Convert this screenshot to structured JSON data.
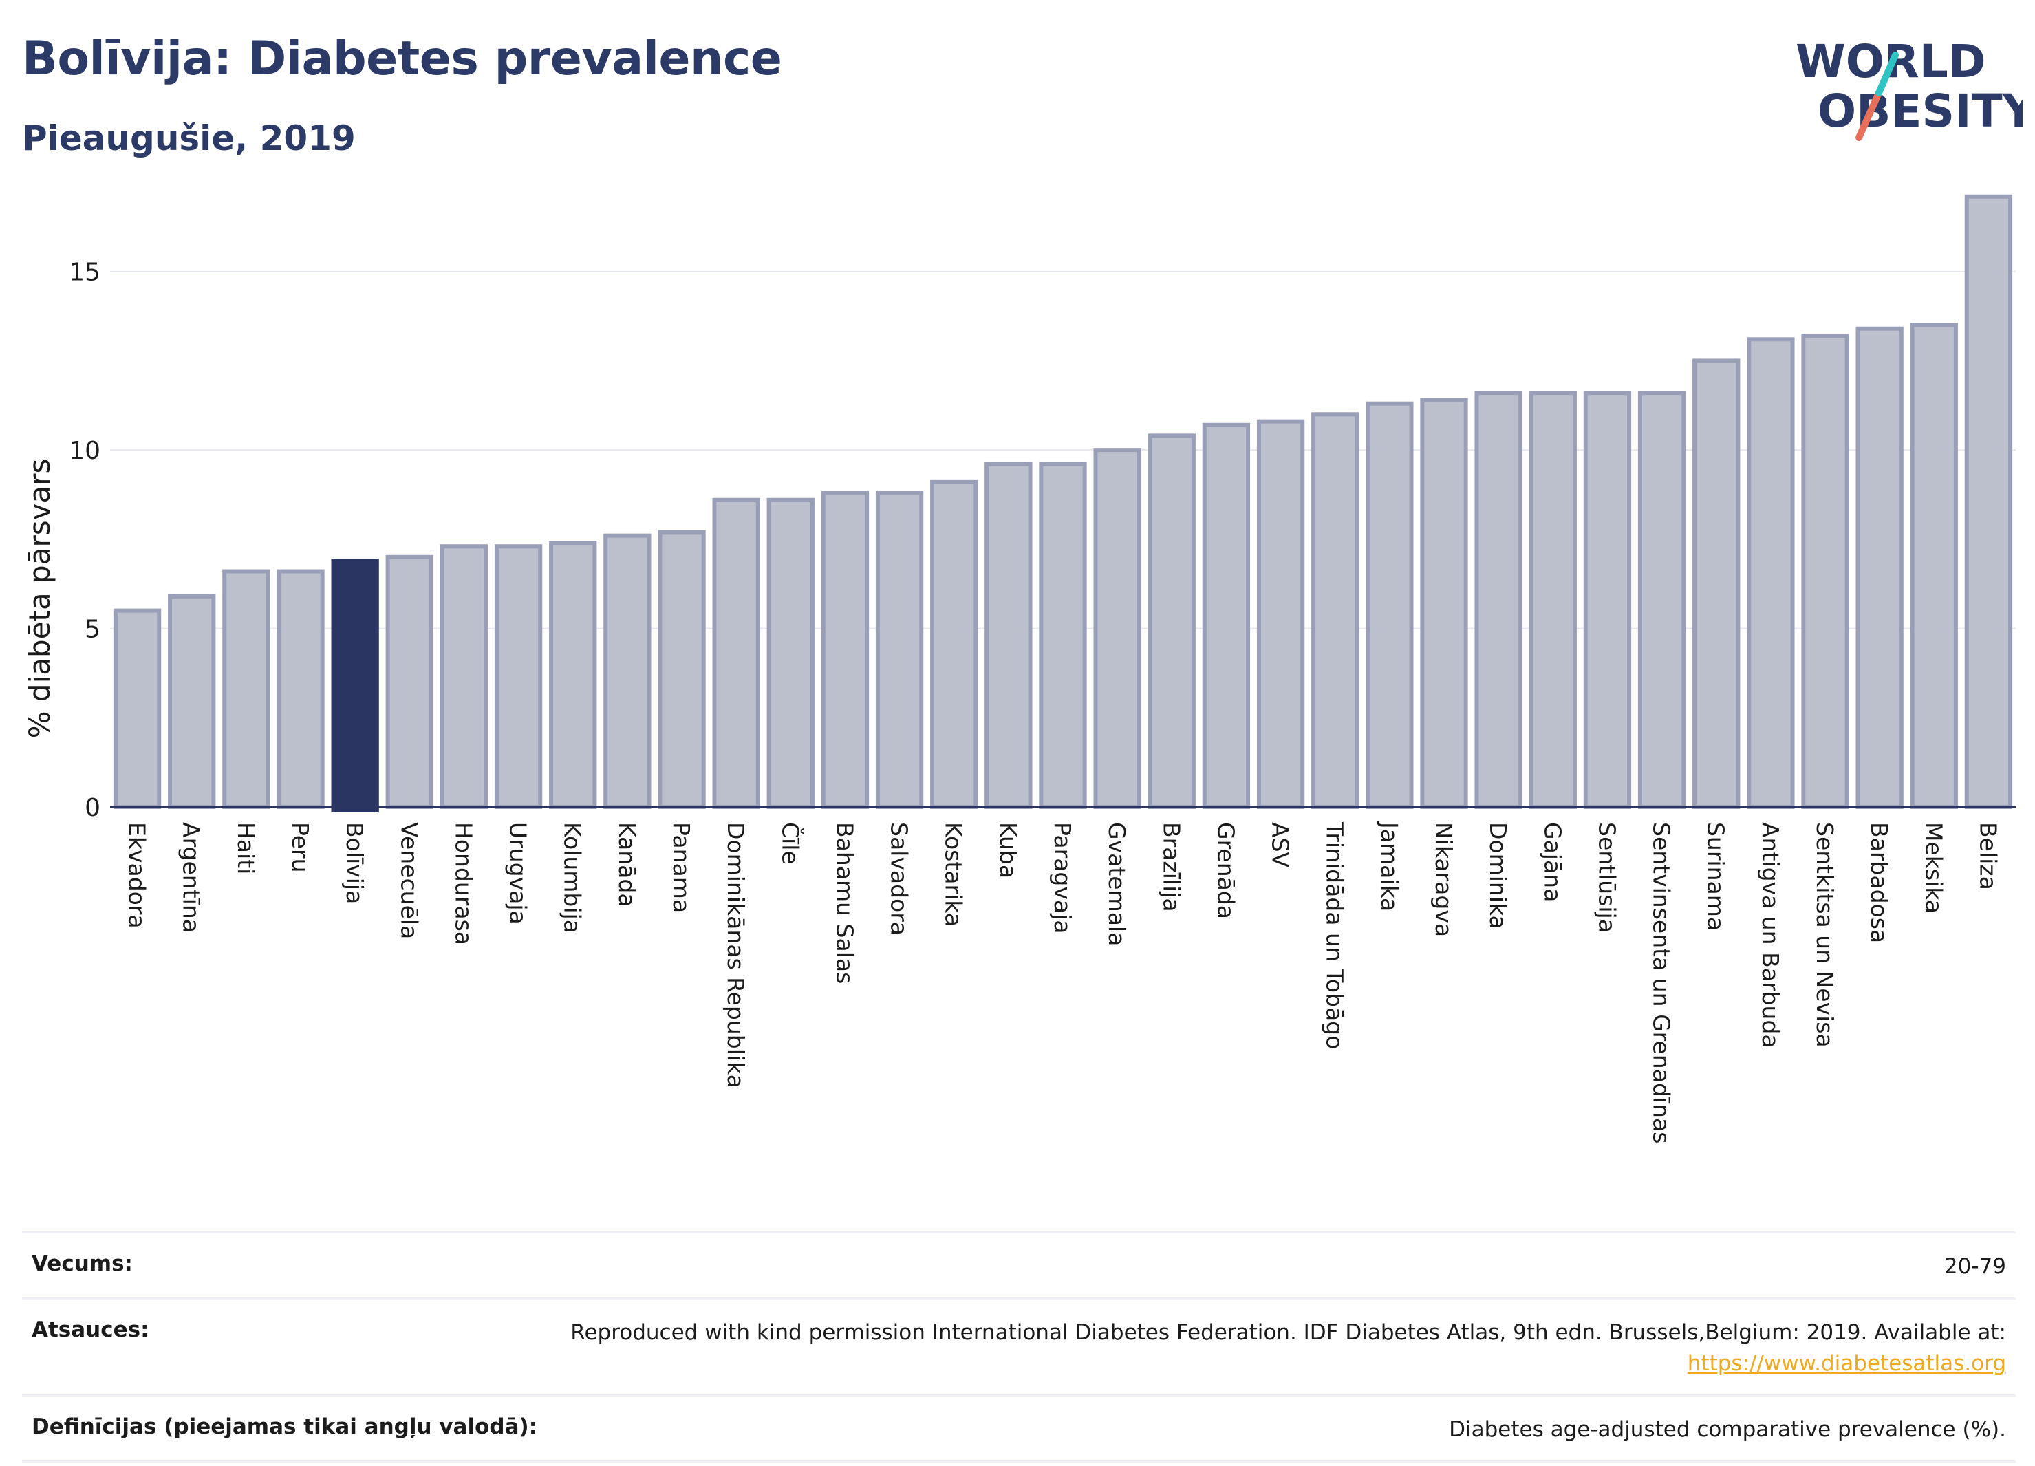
{
  "header": {
    "title": "Bolīvija: Diabetes prevalence",
    "subtitle": "Pieaugušie, 2019"
  },
  "logo": {
    "line1": "WORLD",
    "line2": "OBESITY",
    "colors": {
      "text": "#2b3a67",
      "slash_top": "#2ec4c4",
      "slash_bottom": "#e8705a"
    }
  },
  "chart_data": {
    "type": "bar",
    "ylabel": "% diabēta pārsvars",
    "ylim": [
      0,
      17.5
    ],
    "yticks": [
      0,
      5,
      10,
      15
    ],
    "grid": true,
    "highlight": "Bolīvija",
    "colors": {
      "bar": "#bcc0cd",
      "bar_border": "#9a9fb8",
      "highlight": "#2b3562"
    },
    "categories": [
      "Ekvadora",
      "Argentīna",
      "Haiti",
      "Peru",
      "Bolīvija",
      "Venecuēla",
      "Hondurasa",
      "Urugvaja",
      "Kolumbija",
      "Kanāda",
      "Panama",
      "Dominikānas Republika",
      "Čīle",
      "Bahamu Salas",
      "Salvadora",
      "Kostarika",
      "Kuba",
      "Paragvaja",
      "Gvatemala",
      "Brazīlija",
      "Grenāda",
      "ASV",
      "Trinidāda un Tobāgo",
      "Jamaika",
      "Nikaragva",
      "Dominika",
      "Gajāna",
      "Sentlūsija",
      "Sentvinsenta un Grenadīnas",
      "Surinama",
      "Antigva un Barbuda",
      "Sentkitsa un Nevisa",
      "Barbadosa",
      "Meksika",
      "Beliza"
    ],
    "values": [
      5.5,
      5.9,
      6.6,
      6.6,
      6.9,
      7.0,
      7.3,
      7.3,
      7.4,
      7.6,
      7.7,
      8.6,
      8.6,
      8.8,
      8.8,
      9.1,
      9.6,
      9.6,
      10.0,
      10.4,
      10.7,
      10.8,
      11.0,
      11.3,
      11.4,
      11.6,
      11.6,
      11.6,
      11.6,
      12.5,
      13.1,
      13.2,
      13.4,
      13.5,
      17.1
    ]
  },
  "footer": {
    "age_label": "Vecums:",
    "age_value": "20-79",
    "sources_label": "Atsauces:",
    "sources_text": "Reproduced with kind permission International Diabetes Federation. IDF Diabetes Atlas, 9th edn. Brussels,Belgium: 2019. Available at:",
    "sources_link": "https://www.diabetesatlas.org",
    "definitions_label": "Definīcijas (pieejamas tikai angļu valodā):",
    "definitions_value": "Diabetes age-adjusted comparative prevalence (%)."
  }
}
